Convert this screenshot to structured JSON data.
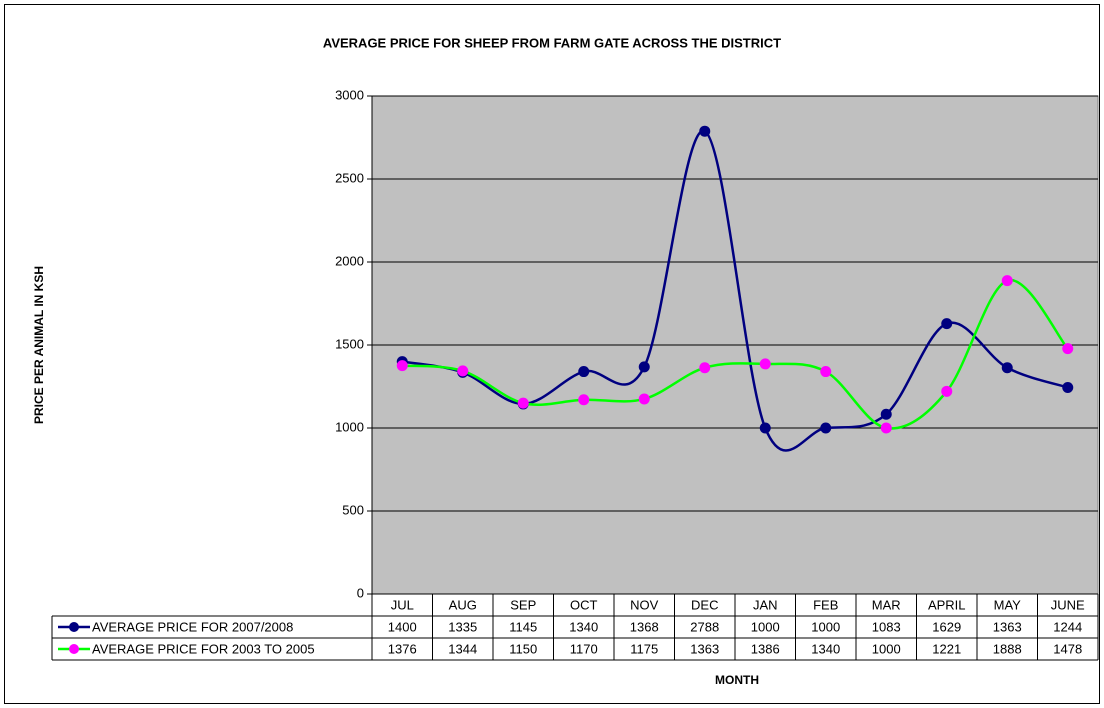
{
  "chart_data": {
    "type": "line",
    "title": "AVERAGE PRICE FOR SHEEP FROM FARM GATE ACROSS THE DISTRICT",
    "y_label": "PRICE PER ANIMAL IN KSH",
    "x_label": "MONTH",
    "categories": [
      "JUL",
      "AUG",
      "SEP",
      "OCT",
      "NOV",
      "DEC",
      "JAN",
      "FEB",
      "MAR",
      "APRIL",
      "MAY",
      "JUNE"
    ],
    "series": [
      {
        "name": "AVERAGE PRICE FOR 2007/2008",
        "color": "#000080",
        "marker_color": "#000080",
        "values": [
          1400,
          1335,
          1145,
          1340,
          1368,
          2788,
          1000,
          1000,
          1083,
          1629,
          1363,
          1244
        ]
      },
      {
        "name": "AVERAGE PRICE FOR 2003 TO 2005",
        "color": "#00ff00",
        "marker_color": "#ff00ff",
        "values": [
          1376,
          1344,
          1150,
          1170,
          1175,
          1363,
          1386,
          1340,
          1000,
          1221,
          1888,
          1478
        ]
      }
    ],
    "ylim": [
      0,
      3000
    ],
    "yticks": [
      0,
      500,
      1000,
      1500,
      2000,
      2500,
      3000
    ],
    "grid": true,
    "smooth": true,
    "plot_background": "#c0c0c0",
    "data_table": true
  }
}
